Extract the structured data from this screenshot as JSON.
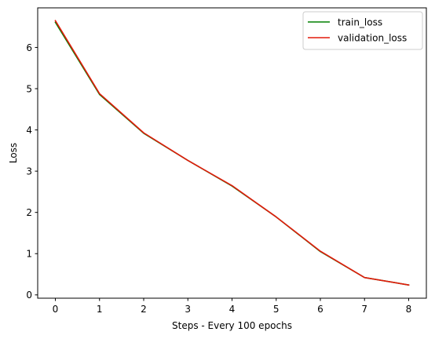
{
  "chart_data": {
    "type": "line",
    "title": "",
    "xlabel": "Steps - Every 100 epochs",
    "ylabel": "Loss",
    "x": [
      0,
      1,
      2,
      3,
      4,
      5,
      6,
      7,
      8
    ],
    "series": [
      {
        "name": "train_loss",
        "color": "#008000",
        "values": [
          6.61,
          4.86,
          3.92,
          3.26,
          2.64,
          1.89,
          1.05,
          0.42,
          0.24
        ]
      },
      {
        "name": "validation_loss",
        "color": "#e31a0c",
        "values": [
          6.65,
          4.88,
          3.93,
          3.26,
          2.65,
          1.89,
          1.06,
          0.42,
          0.24
        ]
      }
    ],
    "xticks": [
      0,
      1,
      2,
      3,
      4,
      5,
      6,
      7,
      8
    ],
    "yticks": [
      0,
      1,
      2,
      3,
      4,
      5,
      6
    ],
    "xlim": [
      -0.4,
      8.4
    ],
    "ylim": [
      -0.08,
      6.96
    ],
    "grid": false,
    "legend": "top-right"
  }
}
